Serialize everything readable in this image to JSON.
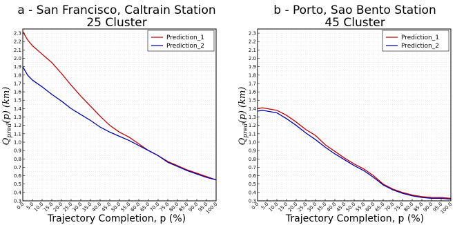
{
  "chart_data": [
    {
      "type": "line",
      "title": "a - San Francisco, Caltrain Station",
      "subtitle": "25 Cluster",
      "xlabel": "Trajectory Completion, p (%)",
      "ylabel": "Q_pred(p) (km)",
      "xlim": [
        0,
        100
      ],
      "ylim": [
        0.3,
        2.35
      ],
      "grid": true,
      "legend": "top-right",
      "xticks": [
        "0.0",
        "5.0",
        "10.0",
        "15.0",
        "20.0",
        "25.0",
        "30.0",
        "35.0",
        "40.0",
        "45.0",
        "50.0",
        "55.0",
        "60.0",
        "65.0",
        "70.0",
        "75.0",
        "80.0",
        "85.0",
        "90.0",
        "95.0",
        "100.0"
      ],
      "yticks": [
        "0.3",
        "0.4",
        "0.5",
        "0.6",
        "0.7",
        "0.8",
        "0.9",
        "1.0",
        "1.1",
        "1.2",
        "1.3",
        "1.4",
        "1.5",
        "1.6",
        "1.7",
        "1.8",
        "1.9",
        "2.0",
        "2.1",
        "2.2",
        "2.3"
      ],
      "x": [
        0,
        2.5,
        5,
        10,
        15,
        20,
        25,
        30,
        35,
        40,
        45,
        50,
        55,
        60,
        65,
        70,
        75,
        80,
        85,
        90,
        95,
        100
      ],
      "series": [
        {
          "name": "Prediction_1",
          "color": "#c00000",
          "values": [
            2.32,
            2.22,
            2.15,
            2.05,
            1.95,
            1.82,
            1.68,
            1.55,
            1.43,
            1.31,
            1.2,
            1.12,
            1.06,
            0.98,
            0.9,
            0.84,
            0.77,
            0.72,
            0.67,
            0.63,
            0.59,
            0.55
          ]
        },
        {
          "name": "Prediction_2",
          "color": "#0000b0",
          "values": [
            1.9,
            1.8,
            1.74,
            1.66,
            1.57,
            1.49,
            1.4,
            1.33,
            1.26,
            1.18,
            1.12,
            1.07,
            1.02,
            0.96,
            0.9,
            0.84,
            0.76,
            0.71,
            0.66,
            0.62,
            0.58,
            0.55
          ]
        }
      ]
    },
    {
      "type": "line",
      "title": "b - Porto, Sao Bento Station",
      "subtitle": "45 Cluster",
      "xlabel": "Trajectory Completion, p (%)",
      "ylabel": "Q_pred(p) (km)",
      "xlim": [
        0,
        100
      ],
      "ylim": [
        0.3,
        2.35
      ],
      "grid": true,
      "legend": "top-right",
      "xticks": [
        "0.0",
        "5.0",
        "10.0",
        "15.0",
        "20.0",
        "25.0",
        "30.0",
        "35.0",
        "40.0",
        "45.0",
        "50.0",
        "55.0",
        "60.0",
        "65.0",
        "70.0",
        "75.0",
        "80.0",
        "85.0",
        "90.0",
        "95.0",
        "100.0"
      ],
      "yticks": [
        "0.3",
        "0.4",
        "0.5",
        "0.6",
        "0.7",
        "0.8",
        "0.9",
        "1.0",
        "1.1",
        "1.2",
        "1.3",
        "1.4",
        "1.5",
        "1.6",
        "1.7",
        "1.8",
        "1.9",
        "2.0",
        "2.1",
        "2.2",
        "2.3"
      ],
      "x": [
        0,
        2.5,
        5,
        10,
        15,
        20,
        25,
        30,
        35,
        40,
        45,
        50,
        55,
        60,
        65,
        70,
        75,
        80,
        85,
        90,
        95,
        100
      ],
      "series": [
        {
          "name": "Prediction_1",
          "color": "#c00000",
          "values": [
            1.4,
            1.41,
            1.4,
            1.38,
            1.32,
            1.24,
            1.15,
            1.08,
            0.97,
            0.89,
            0.81,
            0.74,
            0.68,
            0.6,
            0.5,
            0.44,
            0.4,
            0.37,
            0.35,
            0.34,
            0.34,
            0.33
          ]
        },
        {
          "name": "Prediction_2",
          "color": "#0000b0",
          "values": [
            1.37,
            1.38,
            1.37,
            1.35,
            1.28,
            1.2,
            1.11,
            1.03,
            0.94,
            0.86,
            0.79,
            0.72,
            0.66,
            0.58,
            0.49,
            0.43,
            0.39,
            0.36,
            0.34,
            0.33,
            0.33,
            0.32
          ]
        }
      ]
    }
  ]
}
